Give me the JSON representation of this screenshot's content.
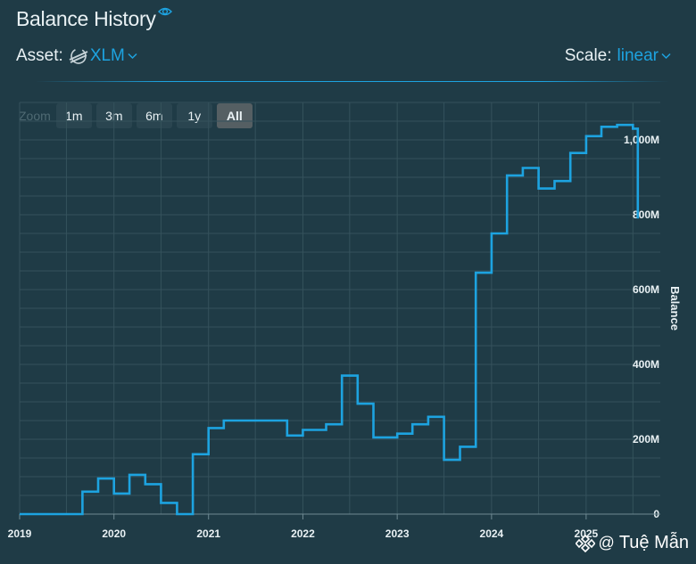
{
  "header": {
    "title": "Balance History"
  },
  "asset": {
    "label": "Asset:",
    "value": "XLM"
  },
  "scale": {
    "label": "Scale:",
    "value": "linear"
  },
  "zoom": {
    "label": "Zoom",
    "buttons": [
      "1m",
      "3m",
      "6m",
      "1y",
      "All"
    ],
    "active": "All"
  },
  "watermark": {
    "at": "@",
    "name": "Tuệ Mẫn"
  },
  "colors": {
    "background": "#1f3b46",
    "line": "#1da3e0",
    "grid": "#3b5862",
    "accent": "#1da3e0"
  },
  "chart_data": {
    "type": "line",
    "step": true,
    "ylabel": "Balance",
    "xlim": [
      "2019-01-01",
      "2025-10-15"
    ],
    "ylim": [
      0,
      1100000000
    ],
    "x_ticks": [
      {
        "date": "2019-01-01",
        "label": "2019"
      },
      {
        "date": "2020-01-01",
        "label": "2020"
      },
      {
        "date": "2021-01-01",
        "label": "2021"
      },
      {
        "date": "2022-01-01",
        "label": "2022"
      },
      {
        "date": "2023-01-01",
        "label": "2023"
      },
      {
        "date": "2024-01-01",
        "label": "2024"
      },
      {
        "date": "2025-01-01",
        "label": "2025"
      }
    ],
    "y_ticks": [
      {
        "value": 0,
        "label": "0"
      },
      {
        "value": 200000000,
        "label": "200M"
      },
      {
        "value": 400000000,
        "label": "400M"
      },
      {
        "value": 600000000,
        "label": "600M"
      },
      {
        "value": 800000000,
        "label": "800M"
      },
      {
        "value": 1000000000,
        "label": "1,000M"
      }
    ],
    "series": [
      {
        "points": [
          {
            "x": "2019-01-01",
            "y": 0
          },
          {
            "x": "2019-09-01",
            "y": 60000000
          },
          {
            "x": "2019-11-01",
            "y": 95000000
          },
          {
            "x": "2020-01-01",
            "y": 55000000
          },
          {
            "x": "2020-03-01",
            "y": 105000000
          },
          {
            "x": "2020-05-01",
            "y": 80000000
          },
          {
            "x": "2020-07-01",
            "y": 30000000
          },
          {
            "x": "2020-09-01",
            "y": 0
          },
          {
            "x": "2020-11-01",
            "y": 160000000
          },
          {
            "x": "2021-01-01",
            "y": 230000000
          },
          {
            "x": "2021-03-01",
            "y": 250000000
          },
          {
            "x": "2021-11-01",
            "y": 210000000
          },
          {
            "x": "2022-01-01",
            "y": 225000000
          },
          {
            "x": "2022-04-01",
            "y": 240000000
          },
          {
            "x": "2022-06-01",
            "y": 370000000
          },
          {
            "x": "2022-08-01",
            "y": 295000000
          },
          {
            "x": "2022-10-01",
            "y": 205000000
          },
          {
            "x": "2023-01-01",
            "y": 215000000
          },
          {
            "x": "2023-03-01",
            "y": 240000000
          },
          {
            "x": "2023-05-01",
            "y": 260000000
          },
          {
            "x": "2023-07-01",
            "y": 145000000
          },
          {
            "x": "2023-09-01",
            "y": 180000000
          },
          {
            "x": "2023-11-01",
            "y": 645000000
          },
          {
            "x": "2024-01-01",
            "y": 750000000
          },
          {
            "x": "2024-03-01",
            "y": 905000000
          },
          {
            "x": "2024-05-01",
            "y": 925000000
          },
          {
            "x": "2024-07-01",
            "y": 870000000
          },
          {
            "x": "2024-09-01",
            "y": 890000000
          },
          {
            "x": "2024-11-01",
            "y": 965000000
          },
          {
            "x": "2025-01-01",
            "y": 1010000000
          },
          {
            "x": "2025-03-01",
            "y": 1035000000
          },
          {
            "x": "2025-05-01",
            "y": 1040000000
          },
          {
            "x": "2025-07-01",
            "y": 1030000000
          },
          {
            "x": "2025-07-20",
            "y": 790000000
          }
        ]
      }
    ]
  }
}
